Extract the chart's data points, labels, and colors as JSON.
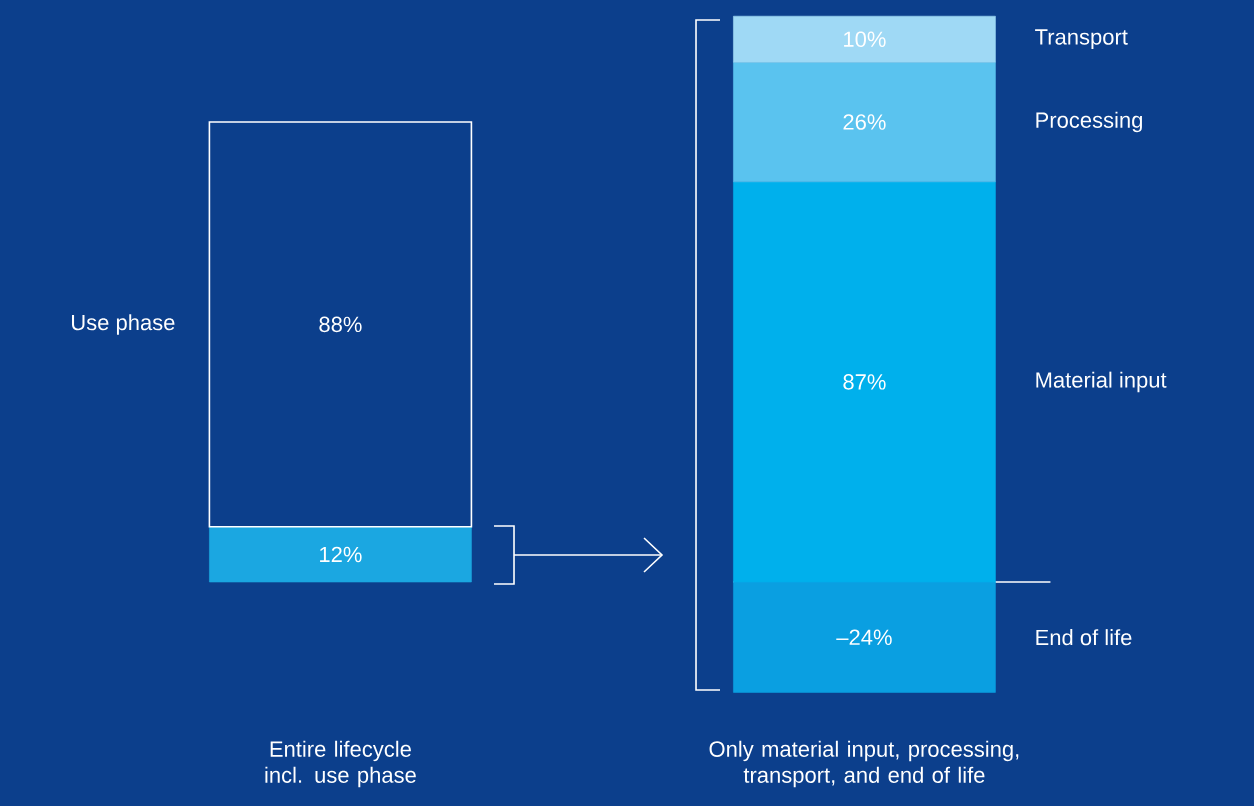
{
  "chart_data": {
    "type": "bar",
    "stacked": true,
    "categories": [
      "Entire lifecycle incl. use phase",
      "Only material input, processing, transport, and end of life"
    ],
    "series": [
      {
        "color": "#1ba7e1",
        "values": [
          12,
          null
        ],
        "value_labels": [
          "12%",
          null
        ]
      },
      {
        "name": "Use phase",
        "color": "#ffffff",
        "values": [
          88,
          null
        ],
        "value_labels": [
          "88%",
          null
        ]
      },
      {
        "name": "End of life",
        "color": "#0a9fe1",
        "values": [
          null,
          -24
        ],
        "value_labels": [
          null,
          "–24%"
        ]
      },
      {
        "name": "Material input",
        "color": "#00b0ec",
        "values": [
          null,
          87
        ],
        "value_labels": [
          null,
          "87%"
        ]
      },
      {
        "name": "Processing",
        "color": "#5ac3ef",
        "values": [
          null,
          26
        ],
        "value_labels": [
          null,
          "26%"
        ]
      },
      {
        "name": "Transport",
        "color": "#9fd9f5",
        "values": [
          null,
          10
        ],
        "value_labels": [
          null,
          "10%"
        ]
      }
    ],
    "ylim": [
      -25,
      124
    ],
    "ref_lines": [
      {
        "axis": "y",
        "value": 0
      }
    ]
  }
}
